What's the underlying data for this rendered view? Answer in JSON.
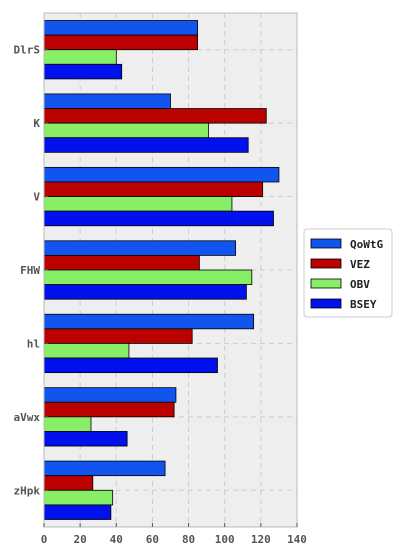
{
  "chart_data": {
    "type": "bar",
    "orientation": "horizontal",
    "categories": [
      "DlrS",
      "K",
      "V",
      "FHW",
      "hl",
      "aVwx",
      "zHpk"
    ],
    "series": [
      {
        "name": "QoWtG",
        "color": "#1155ee",
        "values": [
          85,
          70,
          130,
          106,
          116,
          73,
          67
        ]
      },
      {
        "name": "VEZ",
        "color": "#bb0000",
        "values": [
          85,
          123,
          121,
          86,
          82,
          72,
          27
        ]
      },
      {
        "name": "OBV",
        "color": "#88ee66",
        "values": [
          40,
          91,
          104,
          115,
          47,
          26,
          38
        ]
      },
      {
        "name": "BSEY",
        "color": "#0011ee",
        "values": [
          43,
          113,
          127,
          112,
          96,
          46,
          37
        ]
      }
    ],
    "xlim": [
      0,
      140
    ],
    "xticks": [
      0,
      20,
      40,
      60,
      80,
      100,
      120,
      140
    ],
    "grid": true,
    "legend": "right",
    "background": "#eeeeee"
  }
}
